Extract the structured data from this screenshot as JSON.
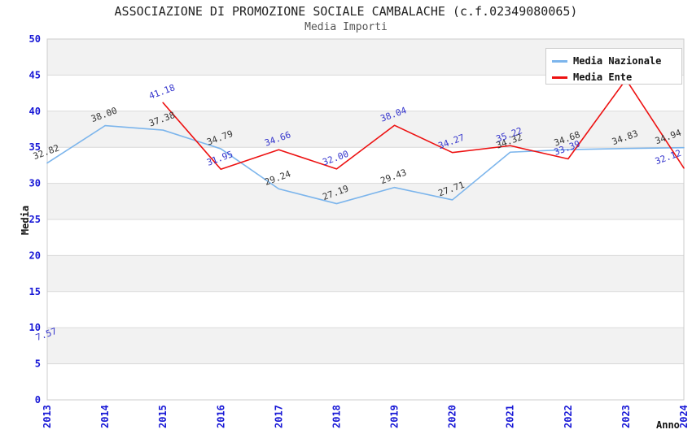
{
  "chart_data": {
    "type": "line",
    "title": "ASSOCIAZIONE DI PROMOZIONE SOCIALE CAMBALACHE (c.f.02349080065)",
    "subtitle": "Media Importi",
    "xlabel": "Anno",
    "ylabel": "Media",
    "categories": [
      "2013",
      "2014",
      "2015",
      "2016",
      "2017",
      "2018",
      "2019",
      "2020",
      "2021",
      "2022",
      "2023",
      "2024"
    ],
    "ylim": [
      0,
      50
    ],
    "yticks": [
      0,
      5,
      10,
      15,
      20,
      25,
      30,
      35,
      40,
      45,
      50
    ],
    "grid": "horizontal gridlines every 5 units with alternating shaded bands",
    "legend_position": "top-right",
    "series": [
      {
        "name": "Media Nazionale",
        "color": "#7cb5ec",
        "label_color": "#333333",
        "values": [
          32.82,
          38.0,
          37.38,
          34.79,
          29.24,
          27.19,
          29.43,
          27.71,
          34.32,
          34.68,
          34.83,
          34.94
        ]
      },
      {
        "name": "Media Ente",
        "color": "#ed1111",
        "label_color": "#3333cc",
        "values": [
          7.57,
          null,
          41.18,
          31.95,
          34.66,
          32.0,
          38.04,
          34.27,
          35.22,
          33.39,
          44.4,
          32.12
        ],
        "hidden_label_indices": [
          10
        ],
        "notes": "2014 value missing (gap in line); 2023 peak label hidden behind legend, value estimated from line position"
      }
    ],
    "colors": {
      "tick": "#1717d6",
      "band": "#f2f2f2",
      "grid": "#d9d9d9",
      "border": "#cccccc",
      "title": "#222222",
      "subtitle": "#555555"
    }
  }
}
